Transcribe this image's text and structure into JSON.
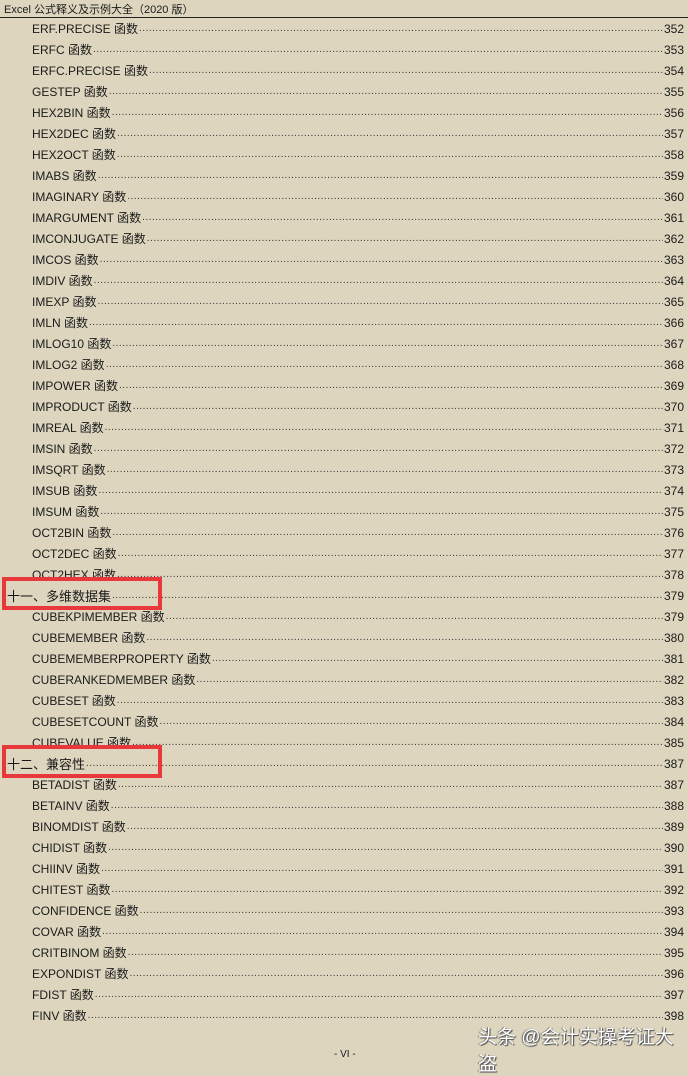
{
  "header": {
    "title": "Excel 公式释义及示例大全（2020 版）"
  },
  "entries": [
    {
      "label": "ERF.PRECISE  函数",
      "page": "352"
    },
    {
      "label": "ERFC  函数",
      "page": "353"
    },
    {
      "label": "ERFC.PRECISE  函数",
      "page": "354"
    },
    {
      "label": "GESTEP  函数",
      "page": "355"
    },
    {
      "label": "HEX2BIN  函数",
      "page": "356"
    },
    {
      "label": "HEX2DEC  函数",
      "page": "357"
    },
    {
      "label": "HEX2OCT  函数",
      "page": "358"
    },
    {
      "label": "IMABS  函数",
      "page": "359"
    },
    {
      "label": "IMAGINARY  函数",
      "page": "360"
    },
    {
      "label": "IMARGUMENT  函数",
      "page": "361"
    },
    {
      "label": "IMCONJUGATE  函数",
      "page": "362"
    },
    {
      "label": "IMCOS  函数",
      "page": "363"
    },
    {
      "label": "IMDIV  函数",
      "page": "364"
    },
    {
      "label": "IMEXP  函数",
      "page": "365"
    },
    {
      "label": "IMLN  函数",
      "page": "366"
    },
    {
      "label": "IMLOG10  函数",
      "page": "367"
    },
    {
      "label": "IMLOG2  函数",
      "page": "368"
    },
    {
      "label": "IMPOWER  函数",
      "page": "369"
    },
    {
      "label": "IMPRODUCT  函数",
      "page": "370"
    },
    {
      "label": "IMREAL  函数",
      "page": "371"
    },
    {
      "label": "IMSIN  函数",
      "page": "372"
    },
    {
      "label": "IMSQRT  函数",
      "page": "373"
    },
    {
      "label": "IMSUB  函数",
      "page": "374"
    },
    {
      "label": "IMSUM  函数",
      "page": "375"
    },
    {
      "label": "OCT2BIN  函数",
      "page": "376"
    },
    {
      "label": "OCT2DEC  函数",
      "page": "377"
    },
    {
      "label": "OCT2HEX  函数",
      "page": "378"
    },
    {
      "label": "十一、多维数据集",
      "page": "379",
      "section": true,
      "highlighted": true
    },
    {
      "label": "CUBEKPIMEMBER  函数",
      "page": "379"
    },
    {
      "label": "CUBEMEMBER  函数",
      "page": "380"
    },
    {
      "label": "CUBEMEMBERPROPERTY  函数",
      "page": "381"
    },
    {
      "label": "CUBERANKEDMEMBER  函数",
      "page": "382"
    },
    {
      "label": "CUBESET  函数",
      "page": "383"
    },
    {
      "label": "CUBESETCOUNT  函数",
      "page": "384"
    },
    {
      "label": "CUBEVALUE  函数",
      "page": "385"
    },
    {
      "label": "十二、兼容性",
      "page": "387",
      "section": true,
      "highlighted": true
    },
    {
      "label": "BETADIST  函数",
      "page": "387"
    },
    {
      "label": "BETAINV  函数",
      "page": "388"
    },
    {
      "label": "BINOMDIST  函数",
      "page": "389"
    },
    {
      "label": "CHIDIST  函数",
      "page": "390"
    },
    {
      "label": "CHIINV  函数",
      "page": "391"
    },
    {
      "label": "CHITEST  函数",
      "page": "392"
    },
    {
      "label": "CONFIDENCE  函数",
      "page": "393"
    },
    {
      "label": "COVAR  函数",
      "page": "394"
    },
    {
      "label": "CRITBINOM  函数",
      "page": "395"
    },
    {
      "label": "EXPONDIST  函数",
      "page": "396"
    },
    {
      "label": "FDIST  函数",
      "page": "397"
    },
    {
      "label": "FINV  函数",
      "page": "398"
    }
  ],
  "highlight_color": "#e8383b",
  "watermark": "头条 @会计实操考证大盗",
  "page_number": "- VI -"
}
